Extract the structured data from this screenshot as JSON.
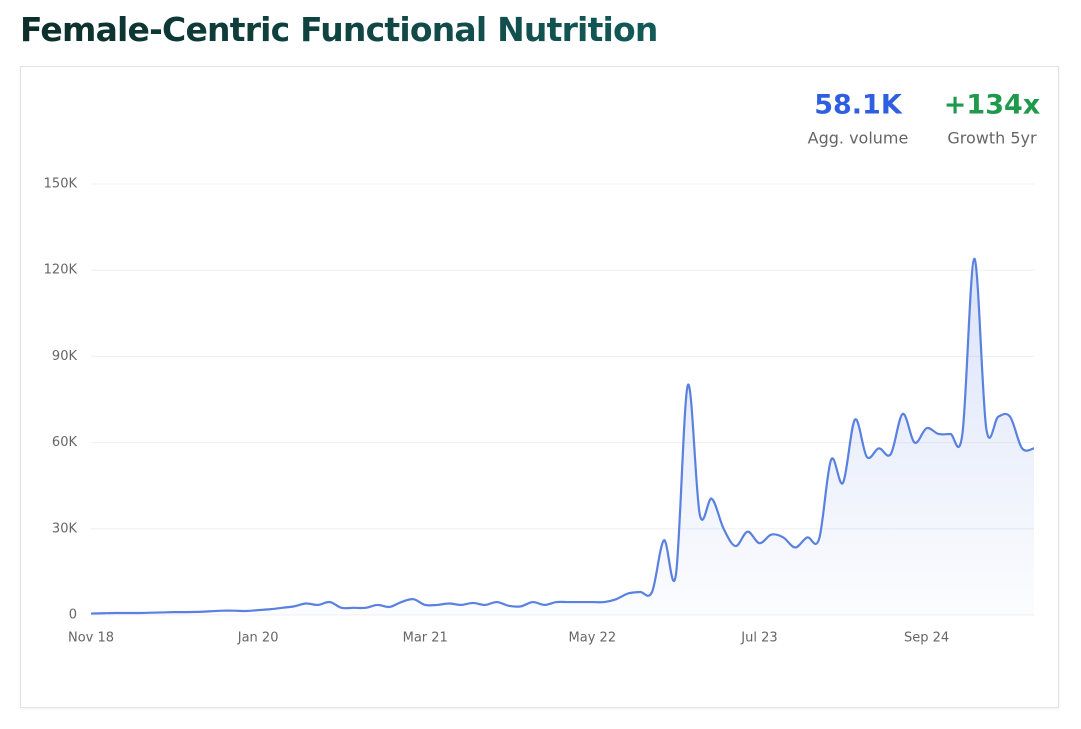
{
  "chart_data": {
    "type": "area",
    "title": "Female-Centric Functional Nutrition",
    "stats": [
      {
        "value": "58.1K",
        "label": "Agg. volume",
        "color": "#2f5fe0"
      },
      {
        "value": "+134x",
        "label": "Growth 5yr",
        "color": "#1f9a4c"
      }
    ],
    "categories": [
      "Nov 18",
      null,
      null,
      null,
      null,
      null,
      null,
      null,
      null,
      null,
      null,
      null,
      null,
      null,
      "Jan 20",
      null,
      null,
      null,
      null,
      null,
      null,
      null,
      null,
      null,
      null,
      null,
      null,
      null,
      "Mar 21",
      null,
      null,
      null,
      null,
      null,
      null,
      null,
      null,
      null,
      null,
      null,
      null,
      null,
      "May 22",
      null,
      null,
      null,
      null,
      null,
      null,
      null,
      null,
      null,
      null,
      null,
      null,
      null,
      "Jul 23",
      null,
      null,
      null,
      null,
      null,
      null,
      null,
      null,
      null,
      null,
      null,
      null,
      null,
      "Sep 24",
      null,
      null,
      null,
      null,
      null,
      null,
      null,
      null,
      null
    ],
    "values": [
      500,
      600,
      700,
      700,
      700,
      800,
      900,
      1000,
      1000,
      1100,
      1300,
      1500,
      1500,
      1400,
      1700,
      2000,
      2500,
      3000,
      4000,
      3500,
      4500,
      2500,
      2500,
      2500,
      3500,
      2800,
      4500,
      5500,
      3500,
      3500,
      4000,
      3500,
      4200,
      3500,
      4500,
      3200,
      3000,
      4500,
      3500,
      4500,
      4500,
      4500,
      4500,
      4500,
      5500,
      7500,
      8000,
      8000,
      26000,
      14000,
      80000,
      35000,
      40500,
      30000,
      24000,
      29000,
      25000,
      28000,
      27000,
      23500,
      27000,
      26500,
      54000,
      46000,
      68000,
      55000,
      58000,
      56000,
      70000,
      60000,
      65000,
      63000,
      63000,
      63000,
      124000,
      65000,
      69000,
      69000,
      58000,
      58000
    ],
    "color": "#5a80e0",
    "ylim": [
      0,
      150000
    ],
    "yticks": [
      0,
      {
        "value": 30000,
        "label": "30K"
      },
      {
        "value": 60000,
        "label": "60K"
      },
      {
        "value": 90000,
        "label": "90K"
      },
      {
        "value": 120000,
        "label": "120K"
      },
      {
        "value": 150000,
        "label": "150K"
      }
    ],
    "grid": true
  }
}
